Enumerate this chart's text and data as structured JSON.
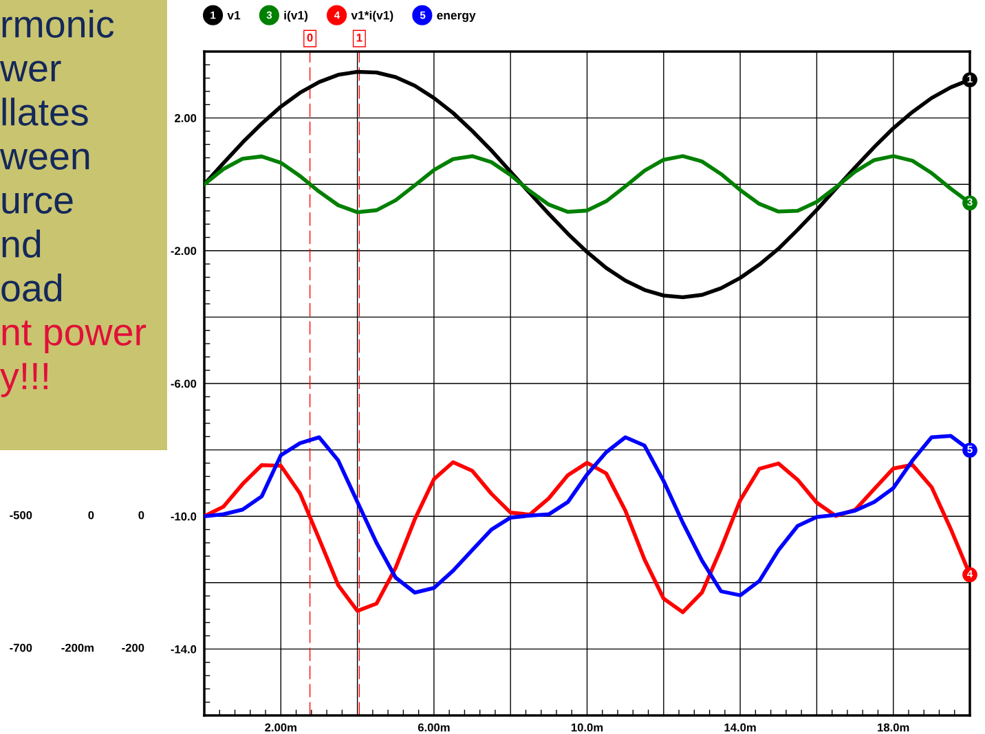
{
  "chart_data": {
    "type": "line",
    "x": [
      0,
      0.5,
      1,
      1.5,
      2,
      2.5,
      3,
      3.5,
      4,
      4.5,
      5,
      5.5,
      6,
      6.5,
      7,
      7.5,
      8,
      8.5,
      9,
      9.5,
      10,
      10.5,
      11,
      11.5,
      12,
      12.5,
      13,
      13.5,
      14,
      14.5,
      15,
      15.5,
      16,
      16.5,
      17,
      17.5,
      18,
      18.5,
      19,
      19.5,
      20
    ],
    "series": [
      {
        "name": "v1",
        "color": "#000000",
        "values": [
          0,
          0.64,
          1.26,
          1.83,
          2.34,
          2.76,
          3.08,
          3.3,
          3.39,
          3.37,
          3.23,
          2.97,
          2.6,
          2.15,
          1.61,
          1.02,
          0.38,
          -0.26,
          -0.89,
          -1.49,
          -2.04,
          -2.52,
          -2.9,
          -3.18,
          -3.35,
          -3.4,
          -3.33,
          -3.13,
          -2.82,
          -2.42,
          -1.94,
          -1.37,
          -0.77,
          -0.13,
          0.51,
          1.12,
          1.69,
          2.18,
          2.6,
          2.92,
          3.15
        ]
      },
      {
        "name": "i(v1)",
        "color": "#008000",
        "values": [
          0,
          0.46,
          0.77,
          0.84,
          0.65,
          0.25,
          -0.22,
          -0.63,
          -0.84,
          -0.78,
          -0.48,
          -0.03,
          0.43,
          0.76,
          0.85,
          0.67,
          0.28,
          -0.2,
          -0.61,
          -0.83,
          -0.79,
          -0.51,
          -0.06,
          0.41,
          0.74,
          0.85,
          0.69,
          0.31,
          -0.17,
          -0.59,
          -0.82,
          -0.8,
          -0.53,
          -0.09,
          0.38,
          0.73,
          0.85,
          0.71,
          0.34,
          -0.13,
          -0.56
        ]
      },
      {
        "name": "v1*i(v1)",
        "color": "#ff0000",
        "values": [
          -10,
          -9.71,
          -9.03,
          -8.46,
          -8.48,
          -9.31,
          -10.68,
          -12.08,
          -12.85,
          -12.63,
          -11.55,
          -10.09,
          -8.88,
          -8.37,
          -8.63,
          -9.32,
          -9.89,
          -9.95,
          -9.46,
          -8.76,
          -8.39,
          -8.71,
          -9.83,
          -11.3,
          -12.48,
          -12.89,
          -12.3,
          -10.97,
          -9.52,
          -8.57,
          -8.41,
          -8.9,
          -9.59,
          -9.99,
          -9.81,
          -9.18,
          -8.56,
          -8.45,
          -9.12,
          -10.38,
          -11.76
        ]
      },
      {
        "name": "energy",
        "color": "#0000ff",
        "values": [
          -10,
          -9.94,
          -9.8,
          -9.4,
          -8.16,
          -7.8,
          -7.62,
          -8.32,
          -9.57,
          -10.8,
          -11.85,
          -12.3,
          -12.16,
          -11.64,
          -11.02,
          -10.4,
          -10.04,
          -9.98,
          -9.94,
          -9.57,
          -8.74,
          -8.07,
          -7.62,
          -7.87,
          -8.94,
          -10.19,
          -11.33,
          -12.26,
          -12.38,
          -11.95,
          -11.02,
          -10.29,
          -10.02,
          -9.96,
          -9.83,
          -9.57,
          -9.15,
          -8.32,
          -7.62,
          -7.58,
          -8.01
        ]
      }
    ],
    "xlim": [
      0,
      20
    ],
    "xticks": [
      {
        "value": 2,
        "label": "2.00m"
      },
      {
        "value": 4,
        "label": null
      },
      {
        "value": 6,
        "label": "6.00m"
      },
      {
        "value": 8,
        "label": null
      },
      {
        "value": 10,
        "label": "10.0m"
      },
      {
        "value": 12,
        "label": null
      },
      {
        "value": 14,
        "label": "14.0m"
      },
      {
        "value": 16,
        "label": null
      },
      {
        "value": 18,
        "label": "18.0m"
      }
    ],
    "ylim": [
      -16,
      4
    ],
    "yticks": [
      {
        "value": 2,
        "label": "2.00"
      },
      {
        "value": 0,
        "label": null
      },
      {
        "value": -2,
        "label": "-2.00"
      },
      {
        "value": -4,
        "label": null
      },
      {
        "value": -6,
        "label": "-6.00"
      },
      {
        "value": -8,
        "label": null
      },
      {
        "value": -10,
        "label": "-10.0"
      },
      {
        "value": -12,
        "label": null
      },
      {
        "value": -14,
        "label": "-14.0"
      }
    ],
    "ref_lines": [
      {
        "axis": "x",
        "value": 2.76,
        "color": "#ff0000",
        "line_style": "dashed"
      },
      {
        "axis": "x",
        "value": 4.05,
        "color": "#ff0000",
        "line_style": "dashed"
      }
    ],
    "annotations": [
      "rmonic",
      "wer",
      "llates",
      "ween",
      "urce",
      "nd",
      "oad",
      "nt power",
      "y!!!",
      "-500",
      "0",
      "0",
      "-700",
      "-200m",
      "-200",
      {
        "text": "0",
        "x": 2.76,
        "y": 4
      },
      {
        "text": "1",
        "x": 4.05,
        "y": 4
      },
      {
        "text": "1",
        "x": 20,
        "y": 3.15
      },
      {
        "text": "3",
        "x": 20,
        "y": -0.56
      },
      {
        "text": "4",
        "x": 20,
        "y": -11.76
      },
      {
        "text": "5",
        "x": 20,
        "y": -8.01
      }
    ],
    "grid": true,
    "legend": "top",
    "marker": "none",
    "line_style": "solid"
  }
}
